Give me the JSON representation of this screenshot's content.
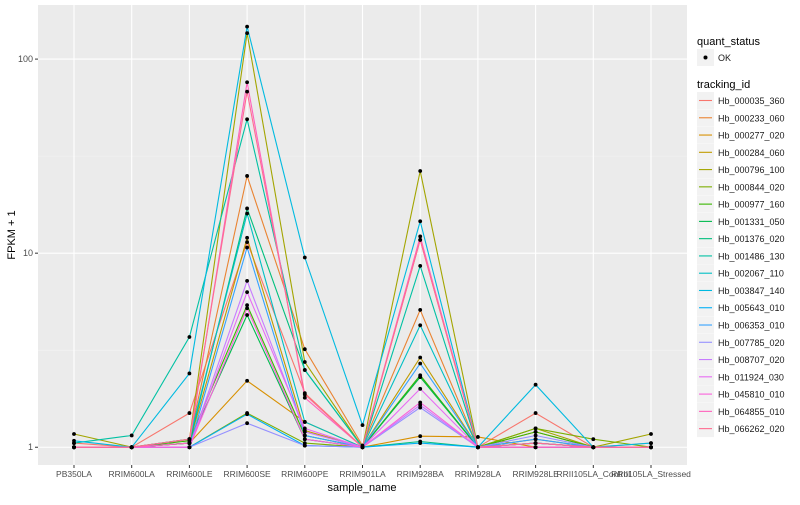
{
  "chart_data": {
    "type": "line",
    "title": "",
    "xlabel": "sample_name",
    "ylabel": "FPKM + 1",
    "yscale": "log10",
    "ylim": [
      0.81,
      190
    ],
    "yticks": [
      1,
      10,
      100
    ],
    "ytick_labels": [
      "1",
      "10",
      "100"
    ],
    "grid": true,
    "legend_position": "right",
    "categories": [
      "PB350LA",
      "RRIM600LA",
      "RRIM600LE",
      "RRIM600SE",
      "RRIM600PE",
      "RRIM901LA",
      "RRIM928BA",
      "RRIM928LA",
      "RRIM928LE",
      "RRII105LA_Control",
      "RRII105LA_Stressed"
    ],
    "point_legend": {
      "title": "quant_status",
      "entries": [
        "OK"
      ]
    },
    "series_legend_title": "tracking_id",
    "series": [
      {
        "name": "Hb_000035_360",
        "color": "#F8766D",
        "values": [
          1.05,
          1.0,
          1.5,
          11.4,
          1.9,
          1.0,
          11.7,
          1.0,
          1.5,
          1.0,
          1.05
        ]
      },
      {
        "name": "Hb_000233_060",
        "color": "#EA8331",
        "values": [
          1.0,
          1.0,
          1.1,
          25,
          3.2,
          1.02,
          5.1,
          1.0,
          1.2,
          1.0,
          1.0
        ]
      },
      {
        "name": "Hb_000277_020",
        "color": "#D89000",
        "values": [
          1.0,
          1.0,
          1.05,
          2.2,
          1.35,
          1.0,
          1.14,
          1.13,
          1.0,
          1.0,
          1.0
        ]
      },
      {
        "name": "Hb_000284_060",
        "color": "#C09B00",
        "values": [
          1.0,
          1.0,
          1.05,
          12,
          1.22,
          1.0,
          2.9,
          1.0,
          1.1,
          1.0,
          1.0
        ]
      },
      {
        "name": "Hb_000796_100",
        "color": "#A3A500",
        "values": [
          1.17,
          1.0,
          1.1,
          136,
          2.75,
          1.0,
          26.5,
          1.0,
          1.25,
          1.0,
          1.17
        ]
      },
      {
        "name": "Hb_000844_020",
        "color": "#7CAE00",
        "values": [
          1.0,
          1.0,
          1.0,
          1.5,
          1.05,
          1.0,
          2.3,
          1.0,
          1.25,
          1.1,
          1.0
        ]
      },
      {
        "name": "Hb_000977_160",
        "color": "#39B600",
        "values": [
          1.0,
          1.0,
          1.08,
          5.4,
          1.15,
          1.0,
          2.35,
          1.0,
          1.2,
          1.0,
          1.0
        ]
      },
      {
        "name": "Hb_001331_050",
        "color": "#00BB4E",
        "values": [
          1.0,
          1.0,
          1.05,
          4.8,
          1.1,
          1.0,
          2.3,
          1.0,
          1.05,
          1.0,
          1.0
        ]
      },
      {
        "name": "Hb_001376_020",
        "color": "#00BF7D",
        "values": [
          1.0,
          1.0,
          1.05,
          17,
          2.5,
          1.0,
          1.07,
          1.0,
          1.05,
          1.0,
          1.0
        ]
      },
      {
        "name": "Hb_001486_130",
        "color": "#00C1A3",
        "values": [
          1.05,
          1.15,
          3.7,
          49,
          2.5,
          1.0,
          8.6,
          1.0,
          1.05,
          1.0,
          1.0
        ]
      },
      {
        "name": "Hb_002067_110",
        "color": "#00BFC4",
        "values": [
          1.0,
          1.0,
          1.1,
          16,
          1.35,
          1.0,
          4.25,
          1.0,
          1.0,
          1.0,
          1.0
        ]
      },
      {
        "name": "Hb_003847_140",
        "color": "#00BAE0",
        "values": [
          1.08,
          1.0,
          2.4,
          147,
          9.5,
          1.3,
          14.6,
          1.0,
          2.1,
          1.0,
          1.05
        ]
      },
      {
        "name": "Hb_005643_010",
        "color": "#00B0F6",
        "values": [
          1.0,
          1.0,
          1.0,
          1.48,
          1.02,
          1.0,
          1.05,
          1.0,
          1.0,
          1.0,
          1.0
        ]
      },
      {
        "name": "Hb_006353_010",
        "color": "#35A2FF",
        "values": [
          1.0,
          1.0,
          1.0,
          10.7,
          1.15,
          1.0,
          2.7,
          1.0,
          1.1,
          1.0,
          1.0
        ]
      },
      {
        "name": "Hb_007785_020",
        "color": "#9590FF",
        "values": [
          1.0,
          1.0,
          1.0,
          1.33,
          1.02,
          1.0,
          1.6,
          1.0,
          1.15,
          1.0,
          1.0
        ]
      },
      {
        "name": "Hb_008707_020",
        "color": "#C77CFF",
        "values": [
          1.0,
          1.0,
          1.0,
          7.2,
          1.2,
          1.0,
          1.65,
          1.0,
          1.05,
          1.0,
          1.0
        ]
      },
      {
        "name": "Hb_011924_030",
        "color": "#E76BF3",
        "values": [
          1.0,
          1.0,
          1.0,
          6.3,
          1.25,
          1.0,
          2.0,
          1.0,
          1.0,
          1.0,
          1.0
        ]
      },
      {
        "name": "Hb_045810_010",
        "color": "#FA62DB",
        "values": [
          1.0,
          1.0,
          1.0,
          5.2,
          1.1,
          1.0,
          1.7,
          1.0,
          1.0,
          1.0,
          1.0
        ]
      },
      {
        "name": "Hb_064855_010",
        "color": "#FF62BC",
        "values": [
          1.0,
          1.0,
          1.05,
          76,
          1.8,
          1.0,
          12.2,
          1.0,
          1.0,
          1.0,
          1.0
        ]
      },
      {
        "name": "Hb_066262_020",
        "color": "#FF6C91",
        "values": [
          1.0,
          1.0,
          1.1,
          68,
          1.87,
          1.0,
          11.7,
          1.0,
          1.05,
          1.0,
          1.0
        ]
      }
    ]
  }
}
